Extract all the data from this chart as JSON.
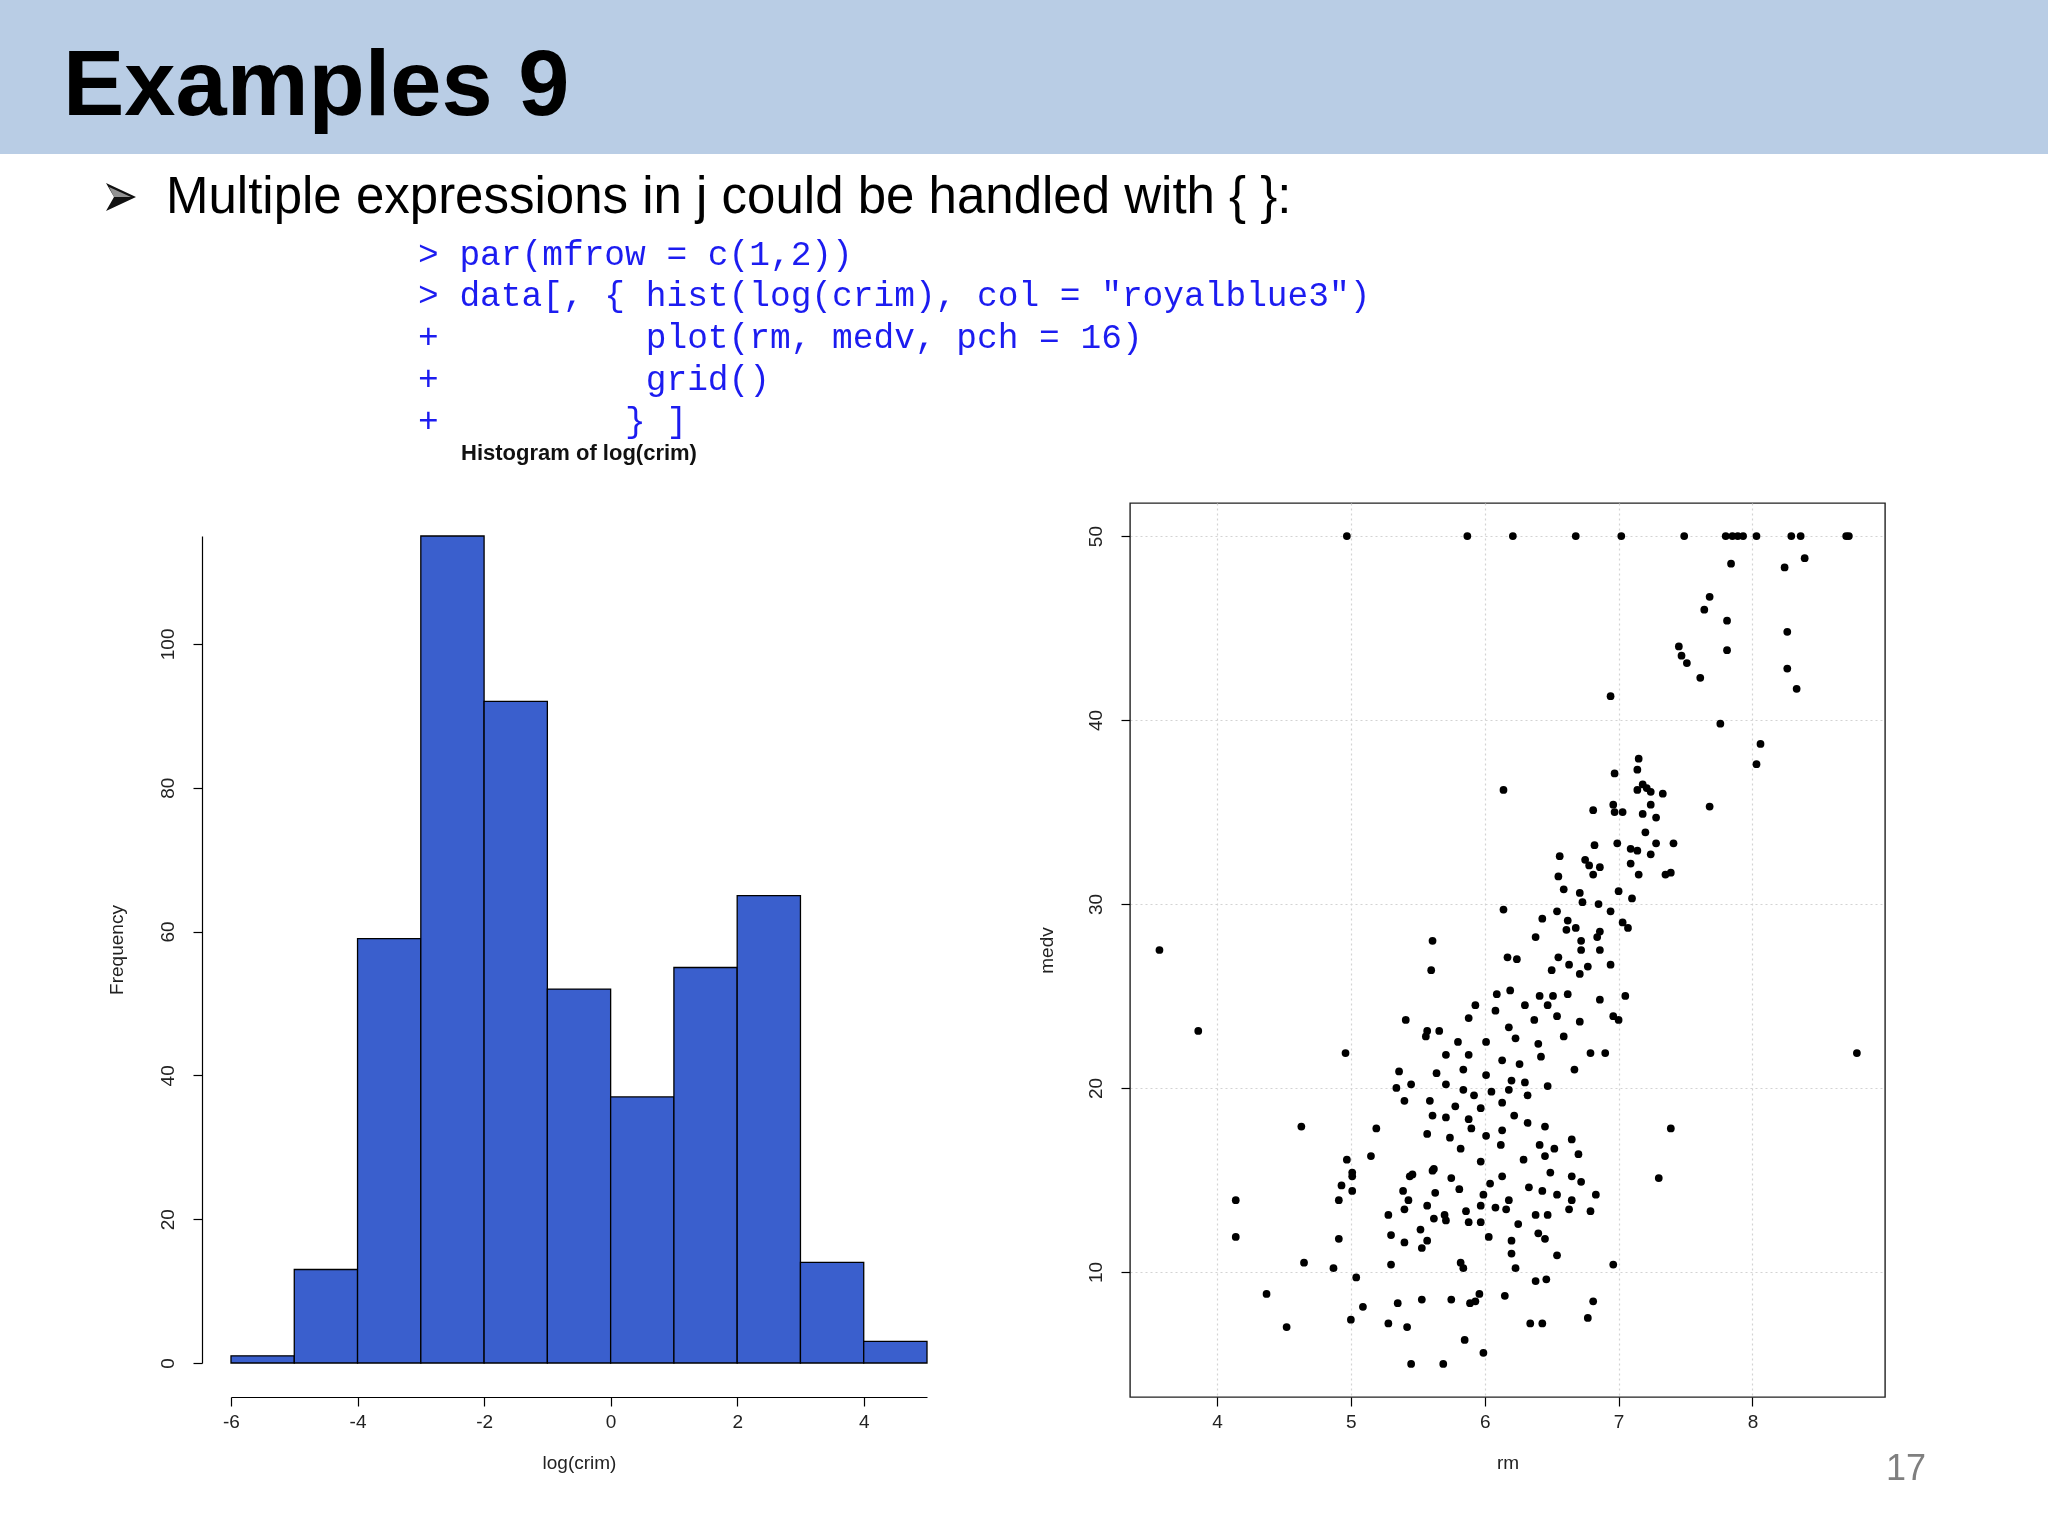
{
  "chart_data": [
    {
      "type": "other",
      "title": "Examples 9",
      "annotations": [
        "Multiple expressions in j could be handled with { }:",
        "> par(mfrow = c(1,2))",
        "> data[, { hist(log(crim), col = \"royalblue3\")",
        "+          plot(rm, medv, pch = 16)",
        "+          grid()",
        "+         } ]",
        "17"
      ]
    },
    {
      "type": "histogram",
      "title": "Histogram of log(crim)",
      "xlabel": "log(crim)",
      "ylabel": "Frequency",
      "bins": [
        -6,
        -5,
        -4,
        -3,
        -2,
        -1,
        0,
        1,
        2,
        3,
        4,
        5
      ],
      "values": [
        1,
        13,
        59,
        115,
        92,
        52,
        37,
        55,
        65,
        14,
        3
      ],
      "color": "#3a5fcd",
      "xlim": [
        -6,
        5
      ],
      "ylim": [
        0,
        115
      ],
      "xticks": [
        -6,
        -4,
        -2,
        0,
        2,
        4
      ],
      "yticks": [
        0,
        20,
        40,
        60,
        80,
        100
      ]
    },
    {
      "type": "scatter",
      "xlabel": "rm",
      "ylabel": "medv",
      "color": "#000000",
      "marker": "circle",
      "grid": true,
      "xlim": [
        3.35,
        8.99
      ],
      "ylim": [
        3.2,
        51.8
      ],
      "xticks": [
        4,
        5,
        6,
        7,
        8
      ],
      "yticks": [
        10,
        20,
        30,
        40,
        50
      ],
      "x": [
        4.97,
        5.87,
        6.21,
        6.68,
        7.02,
        7.49,
        7.8,
        7.85,
        7.89,
        7.93,
        8.03,
        8.29,
        8.36,
        8.7,
        8.72,
        7.84,
        8.24,
        8.39,
        7.68,
        7.64,
        7.81,
        8.26,
        7.45,
        7.47,
        7.51,
        7.81,
        7.61,
        8.26,
        8.33,
        6.94,
        7.76,
        8.06,
        8.03,
        6.14,
        7.68,
        7.15,
        7.14,
        6.97,
        7.18,
        7.21,
        7.14,
        7.24,
        7.33,
        6.96,
        7.24,
        6.81,
        6.97,
        7.03,
        7.18,
        7.28,
        7.2,
        6.82,
        6.99,
        7.41,
        7.28,
        7.09,
        7.14,
        7.24,
        6.56,
        6.75,
        6.78,
        6.86,
        7.09,
        6.55,
        6.81,
        7.15,
        7.35,
        7.39,
        3.57,
        3.86,
        8.78,
        4.96,
        4.63,
        7.39,
        6.14,
        5.61,
        5.6,
        5.41,
        5.56,
        5.57,
        5.66,
        6.17,
        6.24,
        6.5,
        6.38,
        6.43,
        6.54,
        6.59,
        6.71,
        6.73,
        6.85,
        6.94,
        7.0,
        7.1,
        7.03,
        7.07,
        6.62,
        6.61,
        6.68,
        6.72,
        6.72,
        6.86,
        6.84,
        6.86,
        6.55,
        6.63,
        6.71,
        6.77,
        6.94,
        7.05,
        6.86,
        6.96,
        7.0,
        6.9,
        6.79,
        6.67,
        5.93,
        6.09,
        6.19,
        6.41,
        6.51,
        6.62,
        6.08,
        6.3,
        6.47,
        5.88,
        6.18,
        6.37,
        6.54,
        6.71,
        5.8,
        6.01,
        6.23,
        6.4,
        6.59,
        5.71,
        5.88,
        6.13,
        6.26,
        6.42,
        5.84,
        6.01,
        6.2,
        6.3,
        5.71,
        5.84,
        5.92,
        6.05,
        6.18,
        6.32,
        6.47,
        5.59,
        5.78,
        5.97,
        6.13,
        5.61,
        5.71,
        5.88,
        6.22,
        6.32,
        6.45,
        5.57,
        5.74,
        5.9,
        6.01,
        6.13,
        5.36,
        5.34,
        5.4,
        5.45,
        5.64,
        5.19,
        5.15,
        4.97,
        5.01,
        5.46,
        5.62,
        5.82,
        5.97,
        6.12,
        6.29,
        6.41,
        6.52,
        6.65,
        6.7,
        6.45,
        4.14,
        4.14,
        4.37,
        4.52,
        4.65,
        4.87,
        5.04,
        4.91,
        4.91,
        4.93,
        5.01,
        5.01,
        5.0,
        5.09,
        5.28,
        5.42,
        5.35,
        5.53,
        5.75,
        5.89,
        5.93,
        5.96,
        6.15,
        5.85,
        5.99,
        5.45,
        5.69,
        6.34,
        6.43,
        6.77,
        6.81,
        6.38,
        6.46,
        5.3,
        5.82,
        5.84,
        6.23,
        6.2,
        6.54,
        6.96,
        5.4,
        5.3,
        5.53,
        5.57,
        5.28,
        5.52,
        6.03,
        6.2,
        6.45,
        6.4,
        6.25,
        5.88,
        5.97,
        5.62,
        5.71,
        5.7,
        5.4,
        5.43,
        5.57,
        5.63,
        5.39,
        5.97,
        5.86,
        6.08,
        6.16,
        6.18,
        6.38,
        6.47,
        6.63,
        6.79,
        6.65,
        6.83,
        6.54,
        6.43,
        6.33,
        6.04,
        5.99,
        5.81,
        7.3,
        5.44,
        6.49,
        6.65,
        6.72,
        6.13,
        5.75,
        5.61
      ],
      "values": [
        50,
        50,
        50,
        50,
        50,
        50,
        50,
        50,
        50,
        50,
        50,
        50,
        50,
        50,
        50,
        48.5,
        48.3,
        48.8,
        46.7,
        46.0,
        45.4,
        44.8,
        44.0,
        43.5,
        43.1,
        43.8,
        42.3,
        42.8,
        41.7,
        41.3,
        39.8,
        38.7,
        37.6,
        36.2,
        35.3,
        37.9,
        37.3,
        37.1,
        36.5,
        36.3,
        36.2,
        36.1,
        36.0,
        35.4,
        35.4,
        35.1,
        35.0,
        35.0,
        34.9,
        34.7,
        33.9,
        33.2,
        33.3,
        33.3,
        33.3,
        33.0,
        32.9,
        32.7,
        32.6,
        32.4,
        32.1,
        32.0,
        32.2,
        31.5,
        31.6,
        31.6,
        31.6,
        31.7,
        27.5,
        23.1,
        21.9,
        21.9,
        17.9,
        17.8,
        29.7,
        28.0,
        26.4,
        23.7,
        22.8,
        23.1,
        23.1,
        27.1,
        27.0,
        26.4,
        28.2,
        29.2,
        29.6,
        30.8,
        30.6,
        30.1,
        30.0,
        29.6,
        30.7,
        30.3,
        29.0,
        28.7,
        29.1,
        28.6,
        28.7,
        28.0,
        27.5,
        28.5,
        28.2,
        27.5,
        27.1,
        26.7,
        26.2,
        26.6,
        26.7,
        25.0,
        24.8,
        23.9,
        23.7,
        21.9,
        21.9,
        21.0,
        24.5,
        25.1,
        25.3,
        25.0,
        25.0,
        25.1,
        24.2,
        24.5,
        24.5,
        23.8,
        23.3,
        23.7,
        23.9,
        23.6,
        22.5,
        22.5,
        22.7,
        22.4,
        22.8,
        21.8,
        21.8,
        21.5,
        21.3,
        21.7,
        21.0,
        20.7,
        20.4,
        20.3,
        20.2,
        19.9,
        19.6,
        19.8,
        19.9,
        19.6,
        20.1,
        19.3,
        19.0,
        18.9,
        19.2,
        18.5,
        18.4,
        18.3,
        18.5,
        18.1,
        17.9,
        17.5,
        17.3,
        17.8,
        17.4,
        17.7,
        20.9,
        20.0,
        19.3,
        20.2,
        20.8,
        17.8,
        16.3,
        16.1,
        15.2,
        15.3,
        15.6,
        16.7,
        16.0,
        16.9,
        16.1,
        16.9,
        16.7,
        17.2,
        16.4,
        16.3,
        13.9,
        11.9,
        8.8,
        7.0,
        10.5,
        10.2,
        9.7,
        11.8,
        13.9,
        14.7,
        15.4,
        14.4,
        7.4,
        8.1,
        7.2,
        7.0,
        8.3,
        8.5,
        8.5,
        8.3,
        8.4,
        8.8,
        8.7,
        6.3,
        5.6,
        5.0,
        5.0,
        7.2,
        7.2,
        7.5,
        8.4,
        9.5,
        9.6,
        10.4,
        10.5,
        10.2,
        10.2,
        11.0,
        10.9,
        10.4,
        11.6,
        12.0,
        11.3,
        11.7,
        13.1,
        12.3,
        11.9,
        11.7,
        11.8,
        12.1,
        12.6,
        12.7,
        12.7,
        12.9,
        12.8,
        13.1,
        13.4,
        13.9,
        13.6,
        14.3,
        14.4,
        13.6,
        13.3,
        13.5,
        13.4,
        13.9,
        13.1,
        13.1,
        13.4,
        13.3,
        13.9,
        14.2,
        14.2,
        14.4,
        14.6,
        14.8,
        14.2,
        14.5,
        15.1,
        15.2,
        15.4,
        15.2,
        14.9,
        15.2,
        15.1,
        15.5
      ]
    }
  ]
}
